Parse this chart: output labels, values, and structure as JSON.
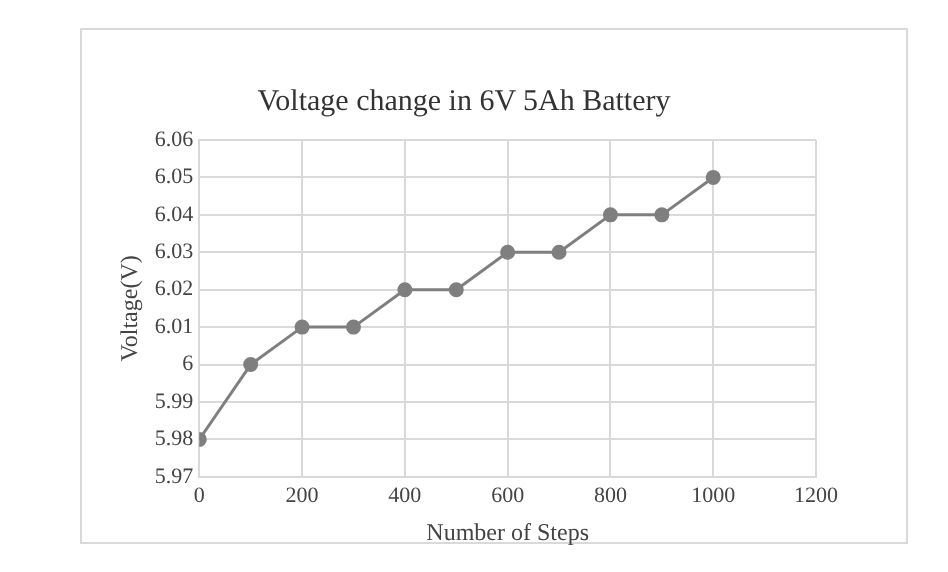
{
  "chart_data": {
    "type": "line",
    "title": "Voltage change in 6V 5Ah Battery",
    "xlabel": "Number of Steps",
    "ylabel": "Voltage(V)",
    "x": [
      0,
      100,
      200,
      300,
      400,
      500,
      600,
      700,
      800,
      900,
      1000
    ],
    "series": [
      {
        "color": "#7f7f7f",
        "values": [
          5.98,
          6.0,
          6.01,
          6.01,
          6.02,
          6.02,
          6.03,
          6.03,
          6.04,
          6.04,
          6.05
        ]
      }
    ],
    "xlim": [
      0,
      1200
    ],
    "xticks": [
      0,
      200,
      400,
      600,
      800,
      1000,
      1200
    ],
    "ylim": [
      5.97,
      6.06
    ],
    "yticks": [
      5.97,
      5.98,
      5.99,
      6,
      6.01,
      6.02,
      6.03,
      6.04,
      6.05,
      6.06
    ],
    "grid": true,
    "legend": false,
    "marker": "circle",
    "line_style": "solid"
  }
}
